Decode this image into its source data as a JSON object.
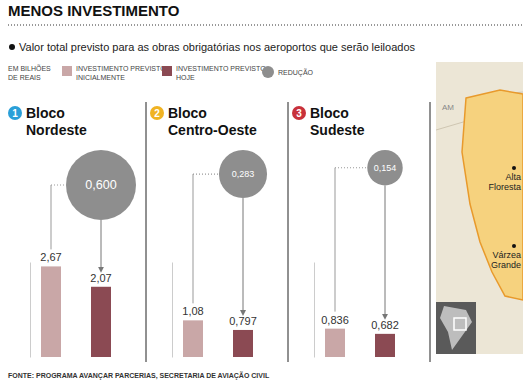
{
  "chart_data": {
    "type": "bar",
    "title": "MENOS INVESTIMENTO",
    "subtitle": "Valor total previsto para as obras obrigatórias nos aeroportos que serão leiloados",
    "categories": [
      "Bloco Nordeste",
      "Bloco Centro-Oeste",
      "Bloco Sudeste"
    ],
    "series": [
      {
        "name": "INVESTIMENTO PREVISTO INICIALMENTE",
        "color": "#c9a7a7",
        "values": [
          2.67,
          1.08,
          0.836
        ],
        "value_labels": [
          "2,67",
          "1,08",
          "0,836"
        ]
      },
      {
        "name": "INVESTIMENTO PREVISTO HOJE",
        "color": "#8b4a53",
        "values": [
          2.07,
          0.797,
          0.682
        ],
        "value_labels": [
          "2,07",
          "0,797",
          "0,682"
        ]
      },
      {
        "name": "REDUÇÃO",
        "type": "bubble",
        "color": "#8e8e8e",
        "values": [
          0.6,
          0.283,
          0.154
        ],
        "value_labels": [
          "0,600",
          "0,283",
          "0,154"
        ]
      }
    ],
    "ylim": [
      0,
      2.8
    ],
    "yticks": [],
    "tick_labels": false,
    "data_labels": true,
    "legend": "top",
    "grid": false,
    "annotations": {
      "badges": [
        "1",
        "2",
        "3"
      ],
      "units": "EM BILHÕES DE REAIS",
      "source": "FONTE: PROGRAMA AVANÇAR PARCERIAS, SECRETARIA DE AVIAÇÃO CIVIL",
      "map_labels": [
        "AM",
        "Alta Floresta",
        "Várzea Grande"
      ]
    }
  }
}
